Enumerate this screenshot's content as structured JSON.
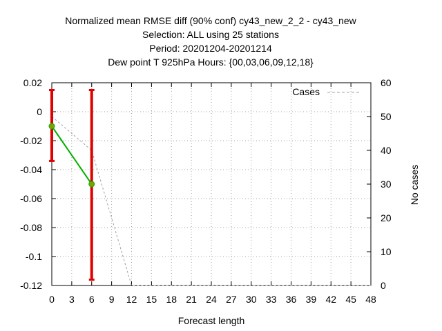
{
  "title_lines": [
    "Normalized mean RMSE diff (90% conf) cy43_new_2_2 - cy43_new",
    "Selection: ALL using    25 stations",
    "Period: 20201204-20201214",
    "Dew point T 925hPa   Hours: {00,03,06,09,12,18}"
  ],
  "chart_data": {
    "type": "line",
    "xlabel": "Forecast length",
    "ylabel_left": "",
    "ylabel_right": "No cases",
    "xlim": [
      0,
      48
    ],
    "ylim": [
      -0.12,
      0.02
    ],
    "y2lim": [
      0,
      60
    ],
    "xticks": [
      "0",
      "3",
      "6",
      "9",
      "12",
      "15",
      "18",
      "21",
      "24",
      "27",
      "30",
      "33",
      "36",
      "39",
      "42",
      "45",
      "48"
    ],
    "yticks": [
      "0.02",
      "0",
      "-0.02",
      "-0.04",
      "-0.06",
      "-0.08",
      "-0.1",
      "-0.12"
    ],
    "y2ticks": [
      "60",
      "50",
      "40",
      "30",
      "20",
      "10",
      "0"
    ],
    "grid": true,
    "legend": {
      "placement": "top-right",
      "entries": [
        "Cases"
      ]
    },
    "series": [
      {
        "axis": "left",
        "color": "#00b000",
        "points": [
          {
            "x": 0,
            "y": -0.01,
            "err_low": -0.034,
            "err_high": 0.015
          },
          {
            "x": 6,
            "y": -0.05,
            "err_low": -0.116,
            "err_high": 0.015
          }
        ]
      },
      {
        "name": "Cases",
        "axis": "right",
        "color": "#a0a0a0",
        "dashed": true,
        "points": [
          {
            "x": 0,
            "y": 50
          },
          {
            "x": 6,
            "y": 40
          },
          {
            "x": 12,
            "y": 0
          },
          {
            "x": 48,
            "y": 0
          }
        ]
      }
    ],
    "errorbar_color": "#e00000"
  }
}
